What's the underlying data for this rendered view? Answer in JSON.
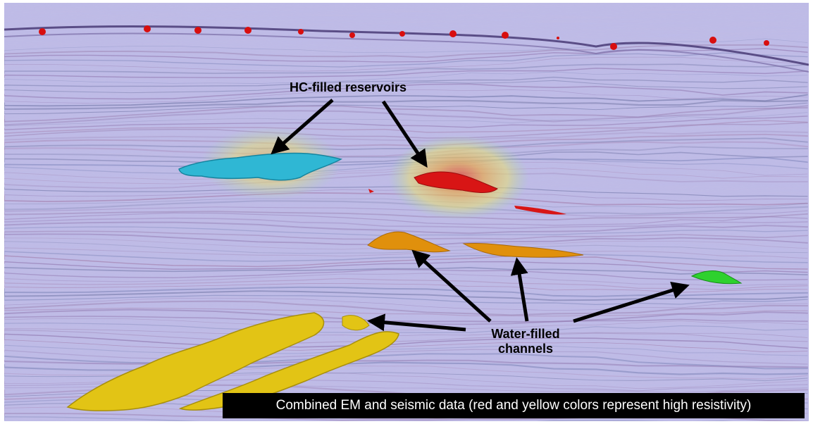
{
  "annotations": {
    "hc_reservoirs": "HC-filled reservoirs",
    "water_channels_line1": "Water-filled",
    "water_channels_line2": "channels"
  },
  "caption": "Combined EM and seismic data (red and yellow colors represent high resistivity)",
  "colors": {
    "seismic_background": "#b8b6e6",
    "hc_reservoir_blue": "#2fb7d4",
    "hc_reservoir_red": "#d81515",
    "water_channel_orange": "#e0900c",
    "water_channel_yellow": "#e2c415",
    "water_channel_green": "#2ed12e",
    "em_anomaly_glow": "#e8c85a",
    "receiver_marker": "#d80e0e",
    "arrow": "#000000",
    "caption_background": "#000000",
    "caption_text": "#ffffff"
  }
}
